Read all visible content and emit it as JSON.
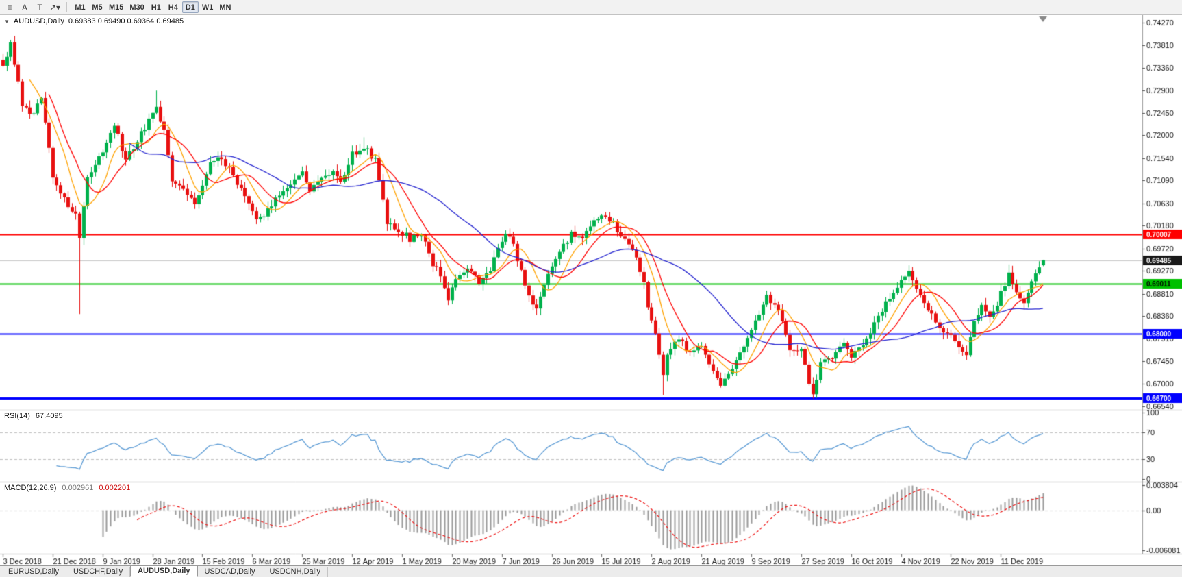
{
  "chart_header": {
    "symbol": "AUDUSD,Daily",
    "ohlc": "0.69383 0.69490 0.69364 0.69485"
  },
  "toolbar": {
    "tools": [
      {
        "name": "charts-list",
        "glyph": "≡"
      },
      {
        "name": "annotation-arrow",
        "glyph": "A"
      },
      {
        "name": "text-tool",
        "glyph": "T"
      },
      {
        "name": "arrows-dropdown",
        "glyph": "↗▾"
      }
    ],
    "timeframes": [
      "M1",
      "M5",
      "M15",
      "M30",
      "H1",
      "H4",
      "D1",
      "W1",
      "MN"
    ],
    "active_timeframe": "D1"
  },
  "tabs": {
    "items": [
      "EURUSD,Daily",
      "USDCHF,Daily",
      "AUDUSD,Daily",
      "USDCAD,Daily",
      "USDCNH,Daily"
    ],
    "active": "AUDUSD,Daily"
  },
  "chart_data": {
    "type": "candlestick",
    "symbol": "AUDUSD",
    "timeframe": "Daily",
    "bars": 272,
    "bars_per_label": 13,
    "date_labels": [
      "3 Dec 2018",
      "21 Dec 2018",
      "9 Jan 2019",
      "28 Jan 2019",
      "15 Feb 2019",
      "6 Mar 2019",
      "25 Mar 2019",
      "12 Apr 2019",
      "1 May 2019",
      "20 May 2019",
      "7 Jun 2019",
      "26 Jun 2019",
      "15 Jul 2019",
      "2 Aug 2019",
      "21 Aug 2019",
      "9 Sep 2019",
      "27 Sep 2019",
      "16 Oct 2019",
      "4 Nov 2019",
      "22 Nov 2019",
      "11 Dec 2019"
    ],
    "price_axis": {
      "top_price": 0.7427,
      "bottom_price": 0.6654,
      "ticks": [
        "0.74270",
        "0.73810",
        "0.73360",
        "0.72900",
        "0.72450",
        "0.72000",
        "0.71540",
        "0.71090",
        "0.70630",
        "0.70180",
        "0.69720",
        "0.69270",
        "0.68810",
        "0.68360",
        "0.67910",
        "0.67450",
        "0.67000",
        "0.66540"
      ]
    },
    "close_waypoints": [
      [
        0,
        0.734
      ],
      [
        2,
        0.7385
      ],
      [
        5,
        0.7262
      ],
      [
        8,
        0.724
      ],
      [
        10,
        0.7282
      ],
      [
        13,
        0.7118
      ],
      [
        17,
        0.7052
      ],
      [
        19,
        0.704
      ],
      [
        20,
        0.6998
      ],
      [
        22,
        0.7118
      ],
      [
        26,
        0.7172
      ],
      [
        29,
        0.7222
      ],
      [
        32,
        0.715
      ],
      [
        35,
        0.7192
      ],
      [
        40,
        0.7252
      ],
      [
        42,
        0.7212
      ],
      [
        44,
        0.7102
      ],
      [
        47,
        0.7092
      ],
      [
        50,
        0.7058
      ],
      [
        53,
        0.7128
      ],
      [
        56,
        0.7162
      ],
      [
        59,
        0.7132
      ],
      [
        62,
        0.7092
      ],
      [
        66,
        0.7026
      ],
      [
        69,
        0.7052
      ],
      [
        72,
        0.7082
      ],
      [
        75,
        0.7106
      ],
      [
        78,
        0.7122
      ],
      [
        80,
        0.709
      ],
      [
        83,
        0.7112
      ],
      [
        86,
        0.7126
      ],
      [
        88,
        0.7106
      ],
      [
        91,
        0.7162
      ],
      [
        94,
        0.718
      ],
      [
        97,
        0.715
      ],
      [
        100,
        0.7022
      ],
      [
        103,
        0.7008
      ],
      [
        106,
        0.6992
      ],
      [
        109,
        0.6998
      ],
      [
        112,
        0.6942
      ],
      [
        114,
        0.6922
      ],
      [
        116,
        0.6867
      ],
      [
        118,
        0.6912
      ],
      [
        121,
        0.6932
      ],
      [
        124,
        0.6906
      ],
      [
        127,
        0.6932
      ],
      [
        130,
        0.6992
      ],
      [
        132,
        0.7
      ],
      [
        135,
        0.6928
      ],
      [
        137,
        0.6872
      ],
      [
        139,
        0.6847
      ],
      [
        142,
        0.6926
      ],
      [
        145,
        0.6962
      ],
      [
        148,
        0.7002
      ],
      [
        151,
        0.699
      ],
      [
        154,
        0.7032
      ],
      [
        157,
        0.7042
      ],
      [
        159,
        0.702
      ],
      [
        162,
        0.6988
      ],
      [
        165,
        0.6958
      ],
      [
        167,
        0.6902
      ],
      [
        168,
        0.6848
      ],
      [
        170,
        0.68
      ],
      [
        171,
        0.6762
      ],
      [
        172,
        0.672
      ],
      [
        173,
        0.6762
      ],
      [
        176,
        0.6792
      ],
      [
        179,
        0.6758
      ],
      [
        182,
        0.6782
      ],
      [
        185,
        0.6722
      ],
      [
        187,
        0.6692
      ],
      [
        190,
        0.6732
      ],
      [
        193,
        0.6772
      ],
      [
        196,
        0.6832
      ],
      [
        199,
        0.6872
      ],
      [
        202,
        0.6842
      ],
      [
        205,
        0.6772
      ],
      [
        208,
        0.6766
      ],
      [
        210,
        0.6706
      ],
      [
        211,
        0.6682
      ],
      [
        213,
        0.6742
      ],
      [
        216,
        0.6756
      ],
      [
        219,
        0.6788
      ],
      [
        221,
        0.6756
      ],
      [
        224,
        0.6772
      ],
      [
        227,
        0.6822
      ],
      [
        230,
        0.6862
      ],
      [
        233,
        0.6898
      ],
      [
        236,
        0.6926
      ],
      [
        239,
        0.6872
      ],
      [
        242,
        0.6842
      ],
      [
        245,
        0.6802
      ],
      [
        247,
        0.6792
      ],
      [
        249,
        0.6772
      ],
      [
        251,
        0.6756
      ],
      [
        253,
        0.6822
      ],
      [
        255,
        0.6857
      ],
      [
        257,
        0.6832
      ],
      [
        259,
        0.6852
      ],
      [
        260,
        0.6882
      ],
      [
        262,
        0.6922
      ],
      [
        264,
        0.6882
      ],
      [
        266,
        0.6862
      ],
      [
        268,
        0.6906
      ],
      [
        270,
        0.6932
      ],
      [
        271,
        0.69485
      ]
    ],
    "special_bars": [
      {
        "i": 20,
        "low": 0.684
      },
      {
        "i": 40,
        "high": 0.729
      },
      {
        "i": 94,
        "high": 0.7196
      },
      {
        "i": 116,
        "low": 0.6858
      },
      {
        "i": 172,
        "low": 0.6677
      },
      {
        "i": 211,
        "low": 0.667
      },
      {
        "i": 262,
        "high": 0.694
      },
      {
        "i": 271,
        "open": 0.69383,
        "high": 0.6949,
        "low": 0.69364,
        "close": 0.69485
      }
    ],
    "candle_up_color": "#00b14c",
    "candle_down_color": "#e81010",
    "moving_averages": [
      {
        "period": 8,
        "color": "#ffa200"
      },
      {
        "period": 13,
        "color": "#ff0000"
      },
      {
        "period": 34,
        "color": "#2424d0"
      }
    ],
    "h_lines": [
      {
        "price": 0.70007,
        "label": "0.70007",
        "color": "#ff0000",
        "width": 2,
        "tag_text_color": "#ffffff"
      },
      {
        "price": 0.69011,
        "label": "0.69011",
        "color": "#00c000",
        "width": 2,
        "tag_text_color": "#000000"
      },
      {
        "price": 0.68,
        "label": "0.68000",
        "color": "#0000ff",
        "width": 2,
        "tag_text_color": "#ffffff"
      },
      {
        "price": 0.667,
        "label": "0.66700",
        "color": "#0000ff",
        "width": 3,
        "tag_text_color": "#ffffff"
      }
    ],
    "current_price": {
      "value": 0.69485,
      "label": "0.69485",
      "line_color": "#c8c8c8",
      "tag_color": "#1a1a1a",
      "tag_text_color": "#ffffff"
    },
    "rsi": {
      "title": "RSI(14)",
      "value": "67.4095",
      "period": 14,
      "axis_labels": [
        "100",
        "70",
        "30",
        "0"
      ],
      "level_lines": [
        70,
        30
      ],
      "line_color": "#5b9bd5"
    },
    "macd": {
      "title": "MACD(12,26,9)",
      "value_main": "0.002961",
      "value_signal": "0.002201",
      "fast": 12,
      "slow": 26,
      "signal": 9,
      "axis_top": 0.003804,
      "axis_bottom": -0.006081,
      "axis_labels": [
        "0.003804",
        "0.00",
        "-0.006081"
      ],
      "hist_color": "#9a9a9a",
      "signal_color": "#ee1414"
    }
  }
}
